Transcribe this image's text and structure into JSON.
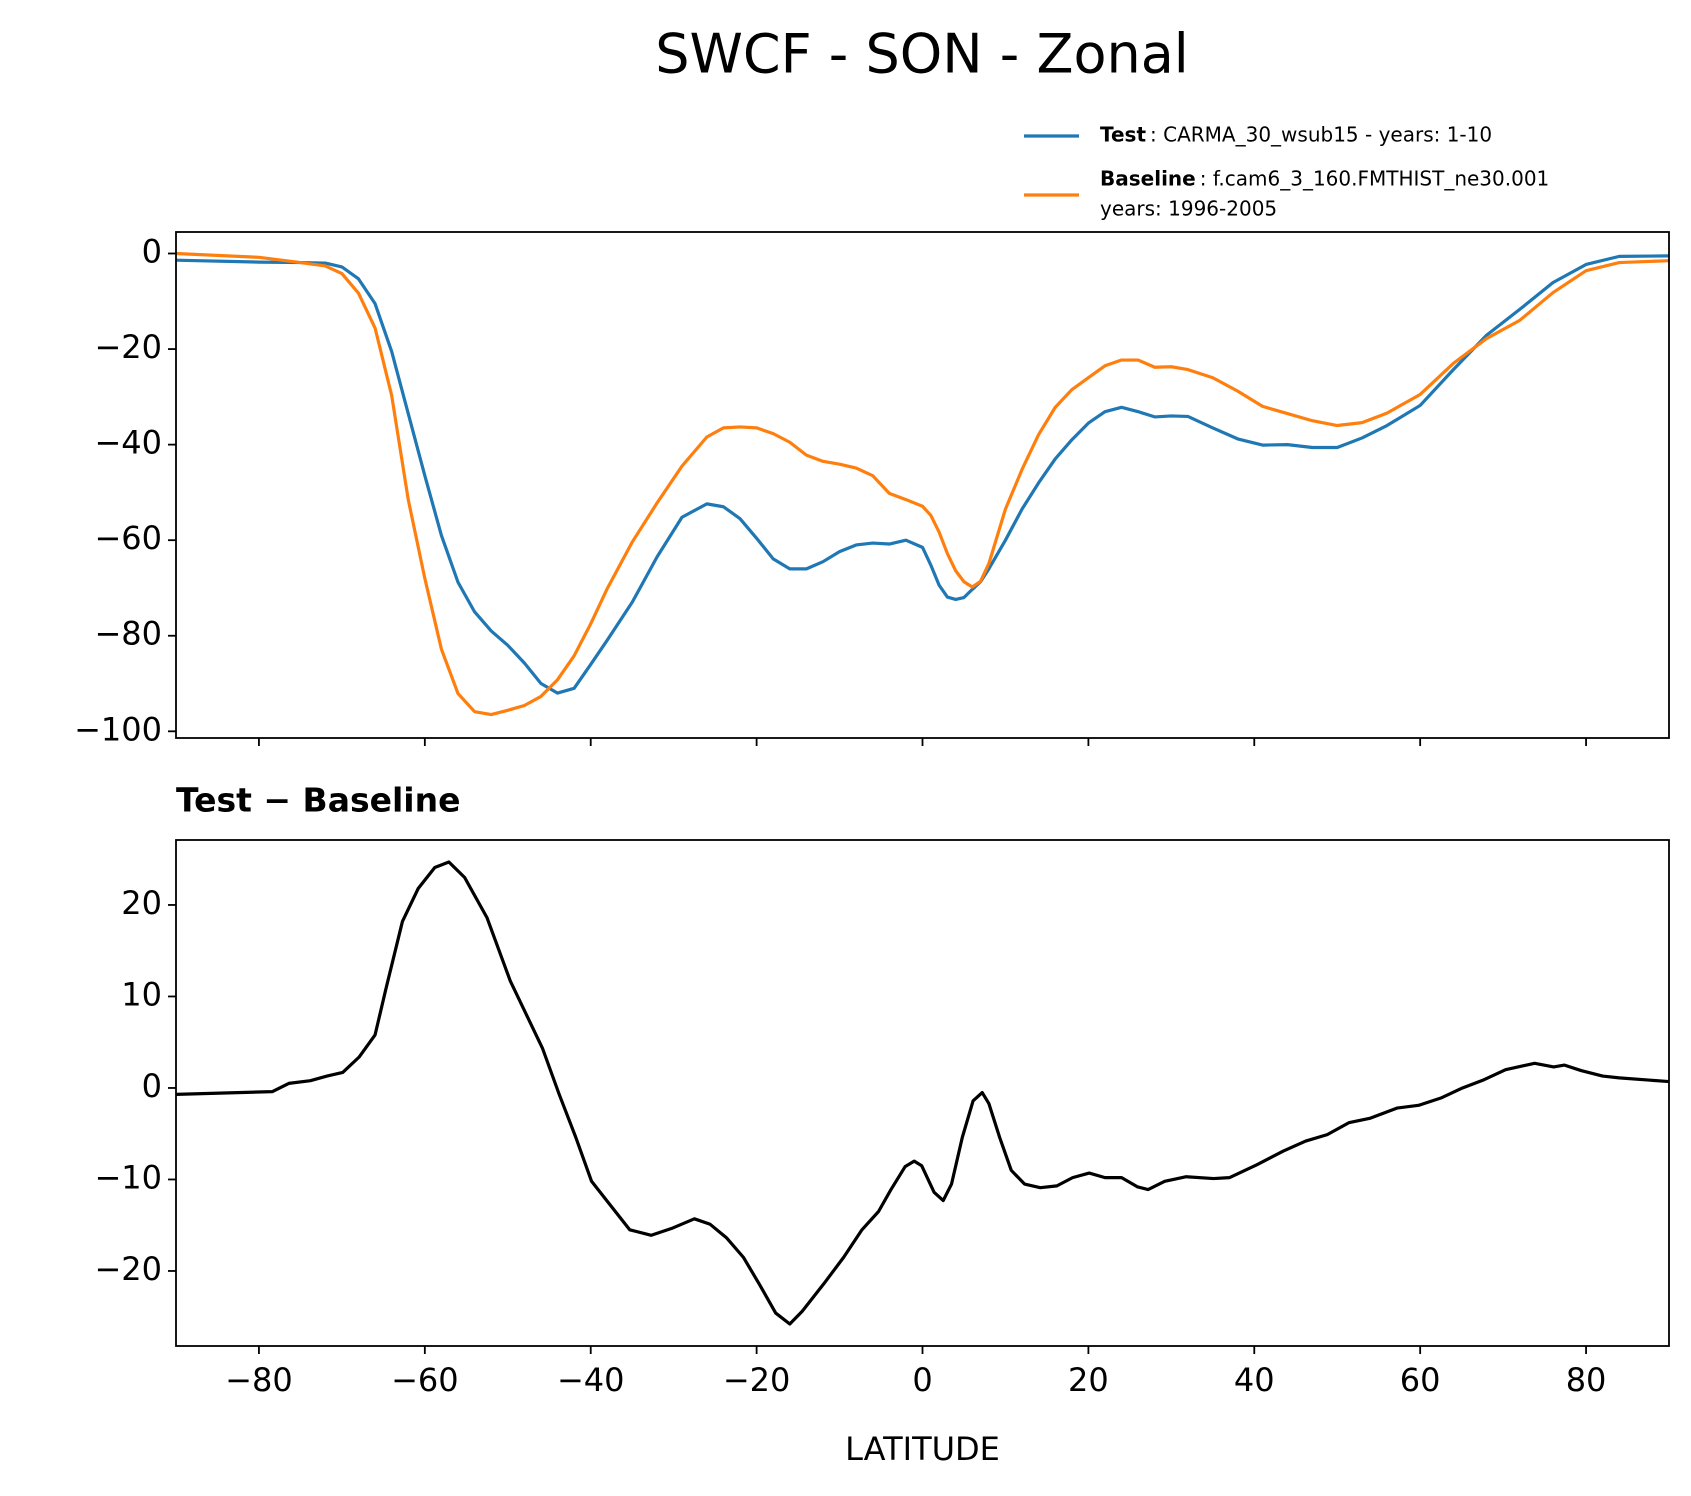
{
  "title": "SWCF - SON - Zonal",
  "chart_data": [
    {
      "type": "line",
      "legend": "upper right",
      "x": [
        -90,
        -80,
        -75,
        -72,
        -70,
        -68,
        -66,
        -64,
        -62,
        -60,
        -58,
        -56,
        -54,
        -52,
        -50,
        -48,
        -46,
        -44,
        -42,
        -40,
        -38,
        -35,
        -32,
        -29,
        -26,
        -24,
        -22,
        -20,
        -18,
        -16,
        -14,
        -12,
        -10,
        -8,
        -6,
        -4,
        -2,
        0,
        1,
        2,
        3,
        4,
        5,
        6,
        7,
        8,
        10,
        12,
        14,
        16,
        18,
        20,
        22,
        24,
        26,
        28,
        30,
        32,
        35,
        38,
        41,
        44,
        47,
        50,
        53,
        56,
        60,
        64,
        68,
        72,
        76,
        80,
        84,
        90
      ],
      "series": [
        {
          "name": "Test",
          "legend_lines": [
            ": CARMA_30_wsub15 - years: 1-10"
          ],
          "color": "#1f77b4",
          "values": [
            -1.4,
            -1.8,
            -1.9,
            -2.0,
            -2.8,
            -5.3,
            -10.5,
            -20.5,
            -33.5,
            -46.5,
            -59,
            -68.8,
            -75,
            -79,
            -82,
            -85.7,
            -90,
            -92,
            -91,
            -86,
            -80.9,
            -73,
            -63.5,
            -55.2,
            -52.4,
            -53,
            -55.5,
            -59.6,
            -63.9,
            -66,
            -66,
            -64.5,
            -62.4,
            -61,
            -60.6,
            -60.8,
            -60,
            -61.5,
            -65.2,
            -69.4,
            -71.9,
            -72.4,
            -72,
            -70.3,
            -68.7,
            -66,
            -60,
            -53.5,
            -48,
            -43,
            -39,
            -35.5,
            -33.1,
            -32.2,
            -33.1,
            -34.2,
            -34,
            -34.1,
            -36.5,
            -38.8,
            -40.1,
            -40,
            -40.6,
            -40.6,
            -38.6,
            -36,
            -31.8,
            -24.3,
            -17.1,
            -11.7,
            -6.1,
            -2.3,
            -0.6,
            -0.5
          ]
        },
        {
          "name": "Baseline",
          "legend_lines": [
            ": f.cam6_3_160.FMTHIST_ne30.001",
            "years: 1996-2005"
          ],
          "color": "#ff7f0e",
          "values": [
            0,
            -0.8,
            -1.9,
            -2.6,
            -4.2,
            -8.3,
            -15.6,
            -29.7,
            -51.5,
            -68,
            -82.8,
            -92.1,
            -95.9,
            -96.5,
            -95.6,
            -94.6,
            -92.7,
            -89.2,
            -84.2,
            -77.5,
            -70.1,
            -60.4,
            -52.2,
            -44.5,
            -38.4,
            -36.5,
            -36.3,
            -36.5,
            -37.7,
            -39.5,
            -42.2,
            -43.5,
            -44.1,
            -44.9,
            -46.5,
            -50.2,
            -51.5,
            -52.9,
            -54.8,
            -58.3,
            -62.8,
            -66.4,
            -68.7,
            -69.8,
            -68.6,
            -64.9,
            -53.5,
            -45.2,
            -37.9,
            -32.2,
            -28.5,
            -26,
            -23.5,
            -22.3,
            -22.3,
            -23.8,
            -23.7,
            -24.3,
            -26,
            -28.8,
            -32,
            -33.5,
            -35,
            -36,
            -35.4,
            -33.4,
            -29.5,
            -23,
            -17.8,
            -14,
            -8.2,
            -3.6,
            -1.9,
            -1.5
          ]
        }
      ],
      "xlim": [
        -90,
        90
      ],
      "xticks": [
        -80,
        -60,
        -40,
        -20,
        0,
        20,
        40,
        60,
        80
      ],
      "xtick_labels": false,
      "ylim": [
        -101.4,
        4.5
      ],
      "yticks": [
        {
          "value": -100,
          "label": "−100"
        },
        {
          "value": -80,
          "label": "−80"
        },
        {
          "value": -60,
          "label": "−60"
        },
        {
          "value": -40,
          "label": "−40"
        },
        {
          "value": -20,
          "label": "−20"
        },
        0
      ]
    },
    {
      "type": "line",
      "title": "Test − Baseline",
      "xlabel": "LATITUDE",
      "color": "#000000",
      "x": [
        -90,
        -78.4,
        -76.4,
        -73.8,
        -71.8,
        -69.9,
        -67.9,
        -66,
        -64.7,
        -62.7,
        -60.8,
        -58.8,
        -57.1,
        -55.2,
        -52.5,
        -49.7,
        -45.8,
        -43.8,
        -41.8,
        -39.9,
        -37.9,
        -35.3,
        -32.7,
        -30.1,
        -27.5,
        -25.6,
        -23.6,
        -21.6,
        -19.7,
        -17.7,
        -16,
        -14.5,
        -11.9,
        -9.5,
        -7.3,
        -5.3,
        -3.8,
        -2.1,
        -1,
        -0.1,
        1.4,
        2.5,
        3.5,
        4.8,
        6.1,
        7.2,
        8,
        9.3,
        10.7,
        12.3,
        14.2,
        16.2,
        18.1,
        20.1,
        22,
        24,
        25.9,
        27.2,
        29.2,
        31.8,
        35.1,
        37,
        40.3,
        43.5,
        46.2,
        48.8,
        51.4,
        54,
        57.2,
        59.8,
        62.5,
        65.1,
        67.7,
        70.3,
        73.8,
        76.1,
        77.4,
        79.4,
        82,
        84,
        90
      ],
      "values": [
        -0.7,
        -0.4,
        0.5,
        0.8,
        1.3,
        1.7,
        3.4,
        5.8,
        10.8,
        18.2,
        21.8,
        24.1,
        24.7,
        23,
        18.6,
        11.7,
        4.3,
        -0.7,
        -5.4,
        -10.2,
        -12.5,
        -15.5,
        -16.1,
        -15.3,
        -14.3,
        -14.9,
        -16.4,
        -18.5,
        -21.4,
        -24.6,
        -25.8,
        -24.4,
        -21.4,
        -18.5,
        -15.5,
        -13.5,
        -11.1,
        -8.6,
        -8,
        -8.5,
        -11.4,
        -12.3,
        -10.5,
        -5.4,
        -1.4,
        -0.5,
        -1.7,
        -5.4,
        -9,
        -10.5,
        -10.9,
        -10.7,
        -9.8,
        -9.3,
        -9.8,
        -9.8,
        -10.8,
        -11.1,
        -10.2,
        -9.7,
        -9.9,
        -9.8,
        -8.4,
        -6.9,
        -5.8,
        -5.1,
        -3.8,
        -3.3,
        -2.2,
        -1.9,
        -1.1,
        0,
        0.9,
        2,
        2.7,
        2.3,
        2.5,
        1.9,
        1.3,
        1.1,
        0.7
      ],
      "xlim": [
        -90,
        90
      ],
      "xticks": [
        {
          "value": -80,
          "label": "−80"
        },
        {
          "value": -60,
          "label": "−60"
        },
        {
          "value": -40,
          "label": "−40"
        },
        {
          "value": -20,
          "label": "−20"
        },
        0,
        20,
        40,
        60,
        80
      ],
      "ylim": [
        -28.2,
        27.1
      ],
      "yticks": [
        {
          "value": -20,
          "label": "−20"
        },
        {
          "value": -10,
          "label": "−10"
        },
        0,
        10,
        20
      ]
    }
  ]
}
